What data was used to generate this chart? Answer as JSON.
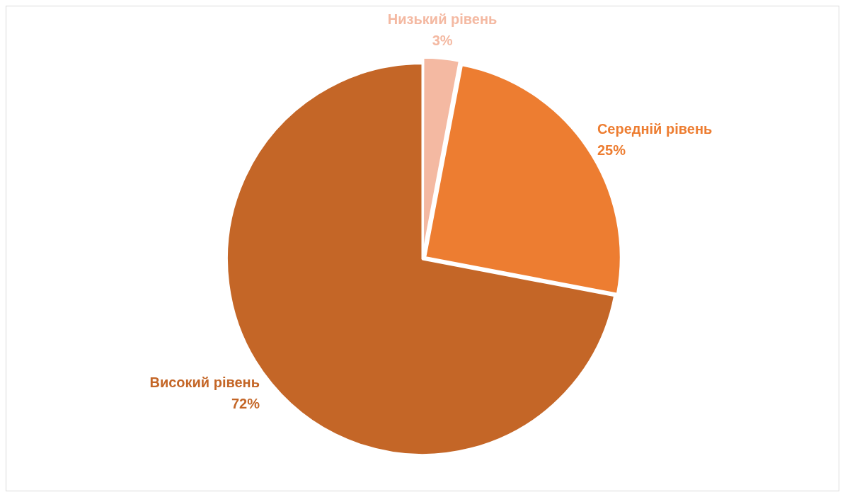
{
  "chart_data": {
    "type": "pie",
    "categories": [
      "Низький рівень",
      "Середній рівень",
      "Високий рівень"
    ],
    "values": [
      3,
      25,
      72
    ],
    "colors": [
      "#f4b9a2",
      "#ed7d31",
      "#c46627"
    ],
    "value_labels": [
      "3%",
      "25%",
      "72%"
    ],
    "legend": false
  }
}
